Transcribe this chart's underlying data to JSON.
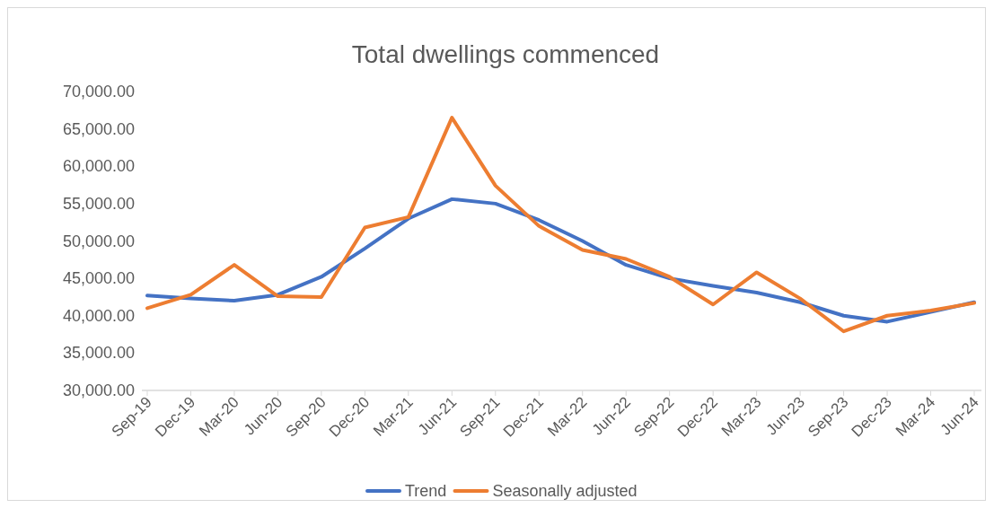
{
  "chart_data": {
    "type": "line",
    "title": "Total dwellings commenced",
    "categories": [
      "Sep-19",
      "Dec-19",
      "Mar-20",
      "Jun-20",
      "Sep-20",
      "Dec-20",
      "Mar-21",
      "Jun-21",
      "Sep-21",
      "Dec-21",
      "Mar-22",
      "Jun-22",
      "Sep-22",
      "Dec-22",
      "Mar-23",
      "Jun-23",
      "Sep-23",
      "Dec-23",
      "Mar-24",
      "Jun-24"
    ],
    "series": [
      {
        "name": "Trend",
        "color": "#4472c4",
        "values": [
          42700,
          42300,
          42000,
          42800,
          45200,
          49000,
          53000,
          55600,
          55000,
          52800,
          50000,
          46800,
          45000,
          44000,
          43100,
          41800,
          40000,
          39200,
          40500,
          41800
        ]
      },
      {
        "name": "Seasonally adjusted",
        "color": "#ed7d31",
        "values": [
          41000,
          42800,
          46800,
          42600,
          42500,
          51800,
          53200,
          66500,
          57400,
          52000,
          48800,
          47600,
          45200,
          41500,
          45800,
          42300,
          37900,
          40000,
          40700,
          41700
        ]
      }
    ],
    "ylim": [
      30000,
      70000
    ],
    "yticks": [
      {
        "value": 30000,
        "label": "30,000.00"
      },
      {
        "value": 35000,
        "label": "35,000.00"
      },
      {
        "value": 40000,
        "label": "40,000.00"
      },
      {
        "value": 45000,
        "label": "45,000.00"
      },
      {
        "value": 50000,
        "label": "50,000.00"
      },
      {
        "value": 55000,
        "label": "55,000.00"
      },
      {
        "value": 60000,
        "label": "60,000.00"
      },
      {
        "value": 65000,
        "label": "65,000.00"
      },
      {
        "value": 70000,
        "label": "70,000.00"
      }
    ],
    "grid": false,
    "legend": "bottom",
    "marker": "none",
    "line_style": "solid"
  }
}
